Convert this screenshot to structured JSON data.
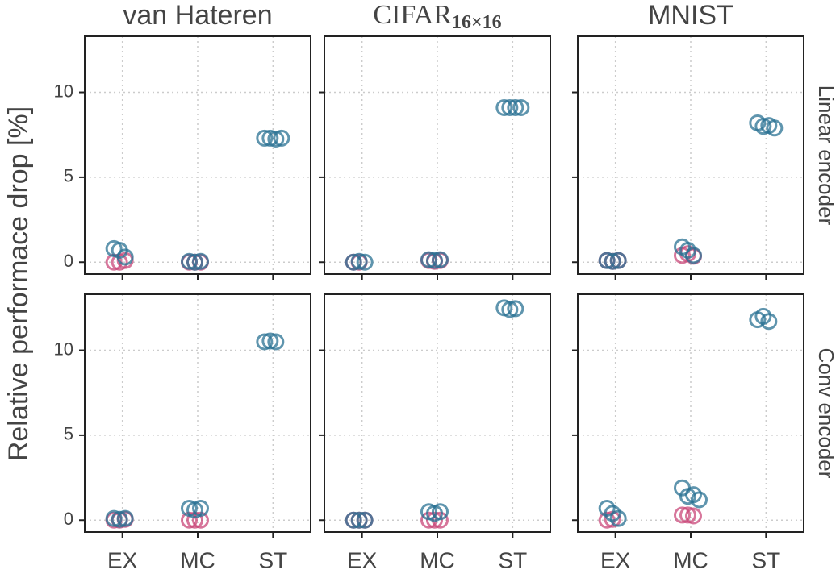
{
  "ylabel": "Relative performace drop [%]",
  "chart_data": [
    {
      "type": "scatter",
      "title": "van Hateren",
      "categories": [
        "EX",
        "MC",
        "ST"
      ],
      "ylim": [
        -0.7,
        13.3
      ],
      "yticks": [
        0,
        5,
        10
      ],
      "grid": true,
      "series": [
        {
          "color": "#c9487a",
          "x": [
            "EX",
            "EX",
            "EX",
            "MC",
            "MC",
            "MC"
          ],
          "values": [
            0,
            0,
            0.1,
            0,
            0,
            0
          ]
        },
        {
          "color": "#2a7193",
          "x": [
            "EX",
            "EX",
            "EX",
            "MC",
            "MC",
            "MC",
            "ST",
            "ST",
            "ST",
            "ST"
          ],
          "values": [
            0.8,
            0.7,
            0.3,
            0.05,
            0,
            0.05,
            7.3,
            7.3,
            7.25,
            7.3
          ]
        }
      ]
    },
    {
      "type": "scatter",
      "title": "CIFAR",
      "title_subscript": "16×16",
      "categories": [
        "EX",
        "MC",
        "ST"
      ],
      "ylim": [
        -0.7,
        13.3
      ],
      "yticks": [
        0,
        5,
        10
      ],
      "grid": true,
      "series": [
        {
          "color": "#c9487a",
          "x": [
            "EX",
            "EX",
            "MC",
            "MC",
            "MC"
          ],
          "values": [
            0,
            0,
            0.1,
            0.05,
            0.1
          ]
        },
        {
          "color": "#2a7193",
          "x": [
            "EX",
            "EX",
            "EX",
            "MC",
            "MC",
            "MC",
            "ST",
            "ST",
            "ST",
            "ST"
          ],
          "values": [
            0,
            0.05,
            0,
            0.15,
            0.1,
            0.15,
            9.1,
            9.1,
            9.1,
            9.1
          ]
        }
      ]
    },
    {
      "type": "scatter",
      "title": "MNIST",
      "row_label": "Linear encoder",
      "categories": [
        "EX",
        "MC",
        "ST"
      ],
      "ylim": [
        -0.7,
        13.3
      ],
      "yticks": [
        0,
        5,
        10
      ],
      "grid": true,
      "series": [
        {
          "color": "#c9487a",
          "x": [
            "EX",
            "EX",
            "EX",
            "MC",
            "MC",
            "MC"
          ],
          "values": [
            0.1,
            0.05,
            0.1,
            0.4,
            0.5,
            0.35
          ]
        },
        {
          "color": "#2a7193",
          "x": [
            "EX",
            "EX",
            "EX",
            "MC",
            "MC",
            "MC",
            "ST",
            "ST",
            "ST",
            "ST"
          ],
          "values": [
            0.1,
            0.05,
            0.1,
            0.9,
            0.7,
            0.4,
            8.2,
            8.0,
            8.05,
            7.9
          ]
        }
      ]
    },
    {
      "type": "scatter",
      "categories": [
        "EX",
        "MC",
        "ST"
      ],
      "ylim": [
        -0.7,
        13.3
      ],
      "yticks": [
        0,
        5,
        10
      ],
      "grid": true,
      "series": [
        {
          "color": "#c9487a",
          "x": [
            "EX",
            "EX",
            "EX",
            "MC",
            "MC",
            "MC"
          ],
          "values": [
            0,
            0,
            0.05,
            0,
            0,
            0
          ]
        },
        {
          "color": "#2a7193",
          "x": [
            "EX",
            "EX",
            "EX",
            "MC",
            "MC",
            "MC",
            "ST",
            "ST",
            "ST"
          ],
          "values": [
            0.1,
            0.05,
            0.1,
            0.7,
            0.6,
            0.7,
            10.5,
            10.55,
            10.5
          ]
        }
      ]
    },
    {
      "type": "scatter",
      "categories": [
        "EX",
        "MC",
        "ST"
      ],
      "ylim": [
        -0.7,
        13.3
      ],
      "yticks": [
        0,
        5,
        10
      ],
      "grid": true,
      "series": [
        {
          "color": "#c9487a",
          "x": [
            "EX",
            "EX",
            "EX",
            "MC",
            "MC",
            "MC"
          ],
          "values": [
            0,
            0,
            0,
            0,
            0,
            0
          ]
        },
        {
          "color": "#2a7193",
          "x": [
            "EX",
            "EX",
            "EX",
            "MC",
            "MC",
            "MC",
            "ST",
            "ST",
            "ST"
          ],
          "values": [
            0,
            0,
            0,
            0.5,
            0.4,
            0.5,
            12.5,
            12.4,
            12.45
          ]
        }
      ]
    },
    {
      "type": "scatter",
      "row_label": "Conv encoder",
      "categories": [
        "EX",
        "MC",
        "ST"
      ],
      "ylim": [
        -0.7,
        13.3
      ],
      "yticks": [
        0,
        5,
        10
      ],
      "grid": true,
      "series": [
        {
          "color": "#c9487a",
          "x": [
            "EX",
            "EX",
            "MC",
            "MC",
            "MC"
          ],
          "values": [
            0,
            0.05,
            0.3,
            0.3,
            0.25
          ]
        },
        {
          "color": "#2a7193",
          "x": [
            "EX",
            "EX",
            "EX",
            "MC",
            "MC",
            "MC",
            "MC",
            "ST",
            "ST",
            "ST"
          ],
          "values": [
            0.7,
            0.4,
            0.1,
            1.9,
            1.4,
            1.5,
            1.2,
            11.8,
            12.0,
            11.7
          ]
        }
      ]
    }
  ]
}
